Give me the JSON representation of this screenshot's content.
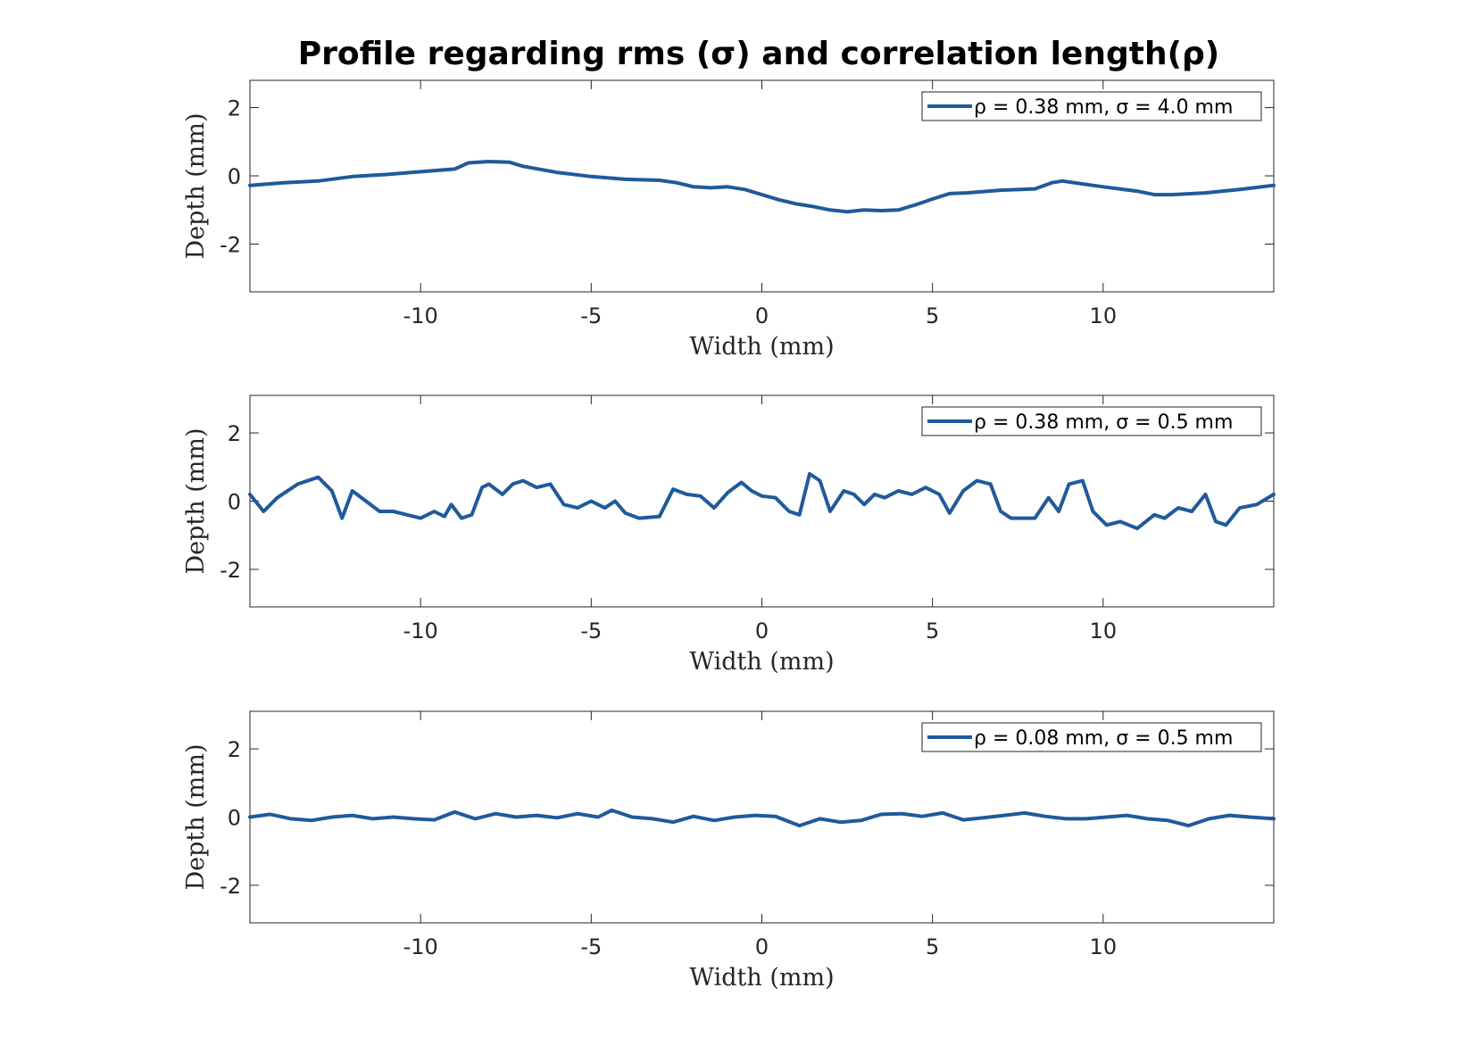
{
  "figure": {
    "title": "Profile regarding rms (σ) and correlation length(ρ)",
    "line_color": "#1f5a9b"
  },
  "chart_data": [
    {
      "type": "line",
      "xlabel": "Width (mm)",
      "ylabel": "Depth (mm)",
      "xlim": [
        -15,
        15
      ],
      "ylim": [
        -3.4,
        2.8
      ],
      "xticks": [
        -10,
        -5,
        0,
        5,
        10
      ],
      "yticks": [
        -2,
        0,
        2
      ],
      "legend_position": "top-right",
      "series": [
        {
          "name": "ρ = 0.38 mm, σ = 4.0 mm",
          "x": [
            -15,
            -14,
            -13,
            -12,
            -11,
            -10,
            -9,
            -8.6,
            -8,
            -7.4,
            -7,
            -6,
            -5,
            -4,
            -3,
            -2.5,
            -2,
            -1.5,
            -1,
            -0.5,
            0,
            0.5,
            1,
            1.5,
            2,
            2.5,
            3,
            3.5,
            4,
            4.5,
            5,
            5.5,
            6,
            7,
            8,
            8.5,
            8.8,
            9.5,
            10,
            11,
            11.5,
            12,
            13,
            14,
            15
          ],
          "y": [
            -0.28,
            -0.2,
            -0.15,
            -0.02,
            0.04,
            0.12,
            0.2,
            0.38,
            0.42,
            0.4,
            0.28,
            0.1,
            -0.02,
            -0.1,
            -0.13,
            -0.2,
            -0.32,
            -0.35,
            -0.32,
            -0.4,
            -0.55,
            -0.7,
            -0.82,
            -0.9,
            -1.0,
            -1.05,
            -1.0,
            -1.02,
            -1.0,
            -0.85,
            -0.68,
            -0.52,
            -0.5,
            -0.42,
            -0.38,
            -0.2,
            -0.15,
            -0.25,
            -0.32,
            -0.45,
            -0.55,
            -0.55,
            -0.5,
            -0.4,
            -0.28
          ]
        }
      ]
    },
    {
      "type": "line",
      "xlabel": "Width (mm)",
      "ylabel": "Depth (mm)",
      "xlim": [
        -15,
        15
      ],
      "ylim": [
        -3.1,
        3.1
      ],
      "xticks": [
        -10,
        -5,
        0,
        5,
        10
      ],
      "yticks": [
        -2,
        0,
        2
      ],
      "legend_position": "top-right",
      "series": [
        {
          "name": "ρ = 0.38 mm, σ = 0.5 mm",
          "x": [
            -15,
            -14.6,
            -14.2,
            -13.6,
            -13,
            -12.6,
            -12.3,
            -12,
            -11.6,
            -11.2,
            -10.8,
            -10.4,
            -10,
            -9.6,
            -9.3,
            -9.1,
            -8.8,
            -8.5,
            -8.2,
            -8,
            -7.6,
            -7.3,
            -7,
            -6.6,
            -6.2,
            -5.8,
            -5.4,
            -5,
            -4.6,
            -4.3,
            -4,
            -3.6,
            -3,
            -2.6,
            -2.2,
            -1.8,
            -1.4,
            -1.0,
            -0.6,
            -0.3,
            0,
            0.4,
            0.8,
            1.1,
            1.4,
            1.7,
            2.0,
            2.4,
            2.7,
            3,
            3.3,
            3.6,
            4,
            4.4,
            4.8,
            5.2,
            5.5,
            5.9,
            6.3,
            6.7,
            7.0,
            7.3,
            7.6,
            8,
            8.4,
            8.7,
            9,
            9.4,
            9.7,
            10.1,
            10.5,
            11,
            11.5,
            11.8,
            12.2,
            12.6,
            13,
            13.3,
            13.6,
            14,
            14.5,
            15
          ],
          "y": [
            0.2,
            -0.3,
            0.1,
            0.5,
            0.7,
            0.3,
            -0.5,
            0.3,
            0.0,
            -0.3,
            -0.3,
            -0.4,
            -0.5,
            -0.3,
            -0.45,
            -0.1,
            -0.5,
            -0.4,
            0.4,
            0.5,
            0.2,
            0.5,
            0.6,
            0.4,
            0.5,
            -0.1,
            -0.2,
            0.0,
            -0.2,
            0.0,
            -0.35,
            -0.5,
            -0.45,
            0.35,
            0.2,
            0.15,
            -0.2,
            0.25,
            0.55,
            0.3,
            0.15,
            0.1,
            -0.3,
            -0.4,
            0.8,
            0.6,
            -0.3,
            0.3,
            0.2,
            -0.1,
            0.2,
            0.1,
            0.3,
            0.2,
            0.4,
            0.2,
            -0.35,
            0.3,
            0.6,
            0.5,
            -0.3,
            -0.5,
            -0.5,
            -0.5,
            0.1,
            -0.3,
            0.5,
            0.6,
            -0.3,
            -0.7,
            -0.6,
            -0.8,
            -0.4,
            -0.5,
            -0.2,
            -0.3,
            0.2,
            -0.6,
            -0.7,
            -0.2,
            -0.1,
            0.2
          ]
        }
      ]
    },
    {
      "type": "line",
      "xlabel": "Width (mm)",
      "ylabel": "Depth (mm)",
      "xlim": [
        -15,
        15
      ],
      "ylim": [
        -3.1,
        3.1
      ],
      "xticks": [
        -10,
        -5,
        0,
        5,
        10
      ],
      "yticks": [
        -2,
        0,
        2
      ],
      "legend_position": "top-right",
      "series": [
        {
          "name": "ρ = 0.08 mm, σ = 0.5 mm",
          "x": [
            -15,
            -14.4,
            -13.8,
            -13.2,
            -12.6,
            -12,
            -11.4,
            -10.8,
            -10.2,
            -9.6,
            -9,
            -8.4,
            -7.8,
            -7.2,
            -6.6,
            -6,
            -5.4,
            -4.8,
            -4.4,
            -3.8,
            -3.2,
            -2.6,
            -2,
            -1.4,
            -0.8,
            -0.2,
            0.4,
            1.1,
            1.7,
            2.3,
            2.9,
            3.5,
            4.1,
            4.7,
            5.3,
            5.9,
            6.5,
            7.1,
            7.7,
            8.3,
            8.9,
            9.5,
            10.1,
            10.7,
            11.3,
            11.9,
            12.5,
            13.1,
            13.7,
            14.3,
            15
          ],
          "y": [
            0.0,
            0.08,
            -0.05,
            -0.1,
            0.0,
            0.05,
            -0.05,
            0.0,
            -0.05,
            -0.08,
            0.15,
            -0.05,
            0.1,
            0.0,
            0.05,
            -0.02,
            0.1,
            0.0,
            0.2,
            0.0,
            -0.05,
            -0.15,
            0.02,
            -0.1,
            0.0,
            0.05,
            0.02,
            -0.25,
            -0.05,
            -0.15,
            -0.1,
            0.08,
            0.1,
            0.02,
            0.12,
            -0.08,
            -0.02,
            0.05,
            0.12,
            0.02,
            -0.05,
            -0.05,
            0.0,
            0.05,
            -0.05,
            -0.1,
            -0.25,
            -0.05,
            0.05,
            0.0,
            -0.05
          ]
        }
      ]
    }
  ]
}
